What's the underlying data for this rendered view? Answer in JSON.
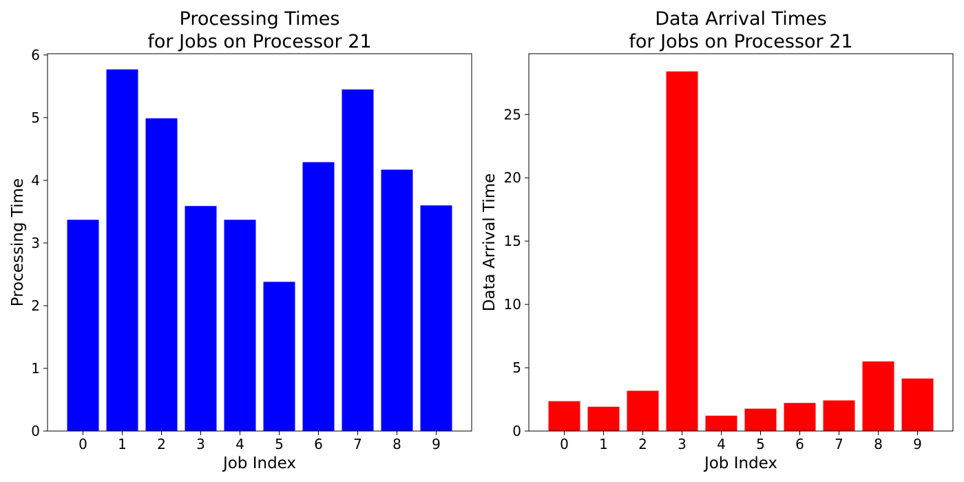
{
  "chart_data": [
    {
      "type": "bar",
      "title_line1": "Processing Times",
      "title_line2": "for Jobs on Processor 21",
      "xlabel": "Job Index",
      "ylabel": "Processing Time",
      "categories": [
        "0",
        "1",
        "2",
        "3",
        "4",
        "5",
        "6",
        "7",
        "8",
        "9"
      ],
      "values": [
        3.37,
        5.77,
        4.99,
        3.59,
        3.37,
        2.38,
        4.29,
        5.45,
        4.17,
        3.6
      ],
      "ylim": [
        0,
        6.02
      ],
      "yticks": [
        0,
        1,
        2,
        3,
        4,
        5,
        6
      ],
      "color": "#0000ff",
      "grid": false
    },
    {
      "type": "bar",
      "title_line1": "Data Arrival Times",
      "title_line2": "for Jobs on Processor 21",
      "xlabel": "Job Index",
      "ylabel": "Data Arrival Time",
      "categories": [
        "0",
        "1",
        "2",
        "3",
        "4",
        "5",
        "6",
        "7",
        "8",
        "9"
      ],
      "values": [
        2.36,
        1.92,
        3.18,
        28.4,
        1.21,
        1.77,
        2.22,
        2.42,
        5.5,
        4.15
      ],
      "ylim": [
        0,
        29.8
      ],
      "yticks": [
        0,
        5,
        10,
        15,
        20,
        25
      ],
      "color": "#ff0000",
      "grid": false
    }
  ]
}
